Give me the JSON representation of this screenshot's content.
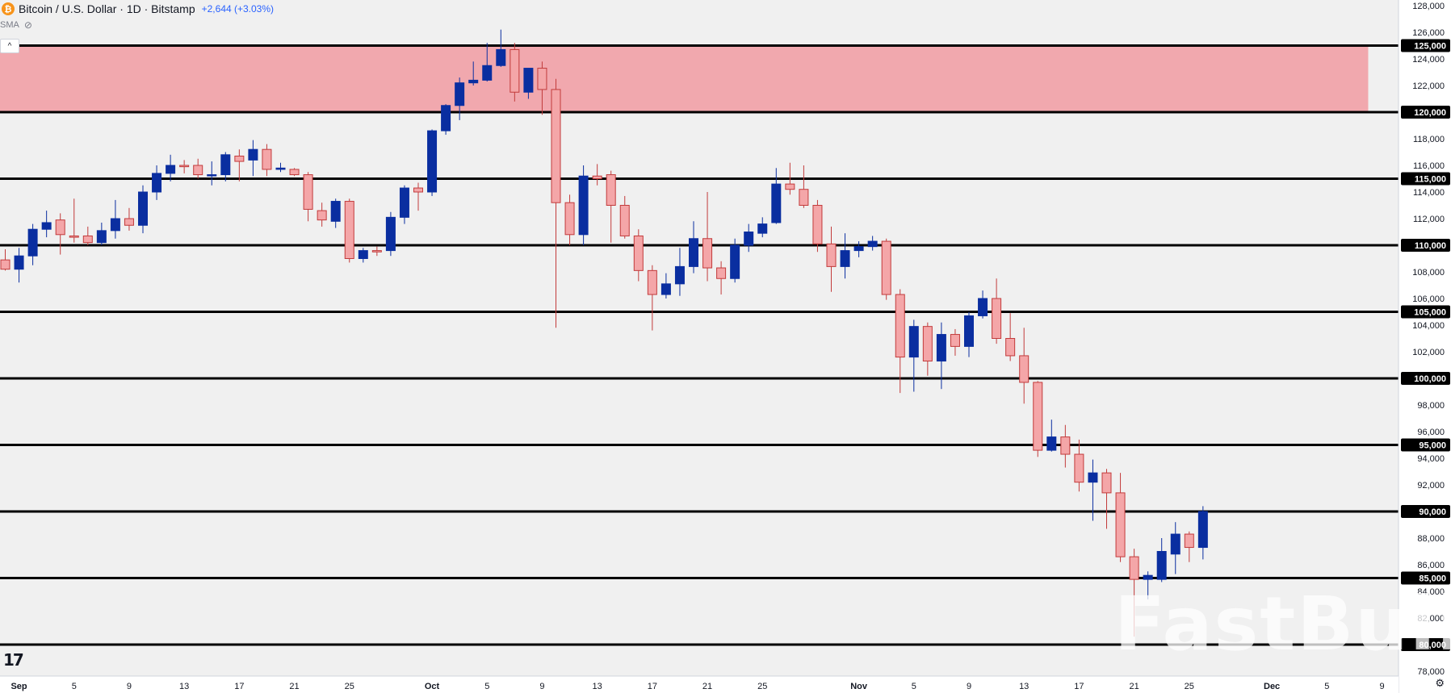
{
  "header": {
    "coin_symbol": "₿",
    "title": "Bitcoin / U.S. Dollar · 1D · Bitstamp",
    "change": "+2,644 (+3.03%)"
  },
  "indicator": {
    "label": "SMA",
    "icon": "eye-crossed-icon"
  },
  "collapse_icon": "^",
  "tv_logo": "17",
  "watermark": "FastBull",
  "settings_icon": "⚙",
  "colors": {
    "background": "#f0f0f0",
    "up_candle": "#0a2ea0",
    "down_candle_fill": "#f4a6a8",
    "down_candle_border": "#c23b3b",
    "resistance_zone": "#f1a8ae",
    "level_line": "#000000",
    "level_label_bg": "#000000",
    "level_label_text": "#ffffff"
  },
  "chart_data": {
    "type": "candlestick",
    "title": "Bitcoin / U.S. Dollar · 1D · Bitstamp",
    "ylim": [
      78000,
      128000
    ],
    "y_ticks": [
      78000,
      80000,
      82000,
      84000,
      86000,
      88000,
      90000,
      92000,
      94000,
      96000,
      98000,
      100000,
      102000,
      104000,
      106000,
      108000,
      110000,
      112000,
      114000,
      116000,
      118000,
      120000,
      122000,
      124000,
      126000,
      128000
    ],
    "y_tick_labels": [
      "78,000",
      "80,000",
      "82,000",
      "84,000",
      "86,000",
      "88,000",
      "90,000",
      "92,000",
      "94,000",
      "96,000",
      "98,000",
      "100,000",
      "102,000",
      "104,000",
      "106,000",
      "108,000",
      "110,000",
      "112,000",
      "114,000",
      "116,000",
      "118,000",
      "120,000",
      "122,000",
      "124,000",
      "126,000",
      "128,000"
    ],
    "x_ticks": [
      {
        "i": 1,
        "label": "Sep",
        "bold": true
      },
      {
        "i": 5,
        "label": "5"
      },
      {
        "i": 9,
        "label": "9"
      },
      {
        "i": 13,
        "label": "13"
      },
      {
        "i": 17,
        "label": "17"
      },
      {
        "i": 21,
        "label": "21"
      },
      {
        "i": 25,
        "label": "25"
      },
      {
        "i": 31,
        "label": "Oct",
        "bold": true
      },
      {
        "i": 35,
        "label": "5"
      },
      {
        "i": 39,
        "label": "9"
      },
      {
        "i": 43,
        "label": "13"
      },
      {
        "i": 47,
        "label": "17"
      },
      {
        "i": 51,
        "label": "21"
      },
      {
        "i": 55,
        "label": "25"
      },
      {
        "i": 62,
        "label": "Nov",
        "bold": true
      },
      {
        "i": 66,
        "label": "5"
      },
      {
        "i": 70,
        "label": "9"
      },
      {
        "i": 74,
        "label": "13"
      },
      {
        "i": 78,
        "label": "17"
      },
      {
        "i": 82,
        "label": "21"
      },
      {
        "i": 86,
        "label": "25"
      },
      {
        "i": 92,
        "label": "Dec",
        "bold": true
      },
      {
        "i": 96,
        "label": "5"
      },
      {
        "i": 100,
        "label": "9"
      }
    ],
    "levels": [
      {
        "value": 125000,
        "label": "125,000"
      },
      {
        "value": 120000,
        "label": "120,000"
      },
      {
        "value": 115000,
        "label": "115,000"
      },
      {
        "value": 110000,
        "label": "110,000"
      },
      {
        "value": 105000,
        "label": "105,000"
      },
      {
        "value": 100000,
        "label": "100,000"
      },
      {
        "value": 95000,
        "label": "95,000"
      },
      {
        "value": 90000,
        "label": "90,000"
      },
      {
        "value": 85000,
        "label": "85,000"
      },
      {
        "value": 80000,
        "label": "80,000"
      }
    ],
    "zone": {
      "from": 120000,
      "to": 125000,
      "end_i": 99
    },
    "candles": [
      {
        "i": 0,
        "o": 108900,
        "h": 109700,
        "l": 108100,
        "c": 108200
      },
      {
        "i": 1,
        "o": 108200,
        "h": 109800,
        "l": 107200,
        "c": 109200
      },
      {
        "i": 2,
        "o": 109200,
        "h": 111600,
        "l": 108500,
        "c": 111200
      },
      {
        "i": 3,
        "o": 111200,
        "h": 112600,
        "l": 110600,
        "c": 111700
      },
      {
        "i": 4,
        "o": 111900,
        "h": 112400,
        "l": 109300,
        "c": 110800
      },
      {
        "i": 5,
        "o": 110700,
        "h": 113500,
        "l": 110200,
        "c": 110600
      },
      {
        "i": 6,
        "o": 110700,
        "h": 111400,
        "l": 110000,
        "c": 110200
      },
      {
        "i": 7,
        "o": 110200,
        "h": 111700,
        "l": 110000,
        "c": 111100
      },
      {
        "i": 8,
        "o": 111100,
        "h": 113400,
        "l": 110500,
        "c": 112000
      },
      {
        "i": 9,
        "o": 112000,
        "h": 112800,
        "l": 111100,
        "c": 111500
      },
      {
        "i": 10,
        "o": 111500,
        "h": 114500,
        "l": 110900,
        "c": 114000
      },
      {
        "i": 11,
        "o": 114000,
        "h": 116000,
        "l": 113400,
        "c": 115400
      },
      {
        "i": 12,
        "o": 115400,
        "h": 116800,
        "l": 114800,
        "c": 116000
      },
      {
        "i": 13,
        "o": 116000,
        "h": 116400,
        "l": 115400,
        "c": 115900
      },
      {
        "i": 14,
        "o": 116000,
        "h": 116500,
        "l": 115000,
        "c": 115300
      },
      {
        "i": 15,
        "o": 115300,
        "h": 116300,
        "l": 114500,
        "c": 115300
      },
      {
        "i": 16,
        "o": 115300,
        "h": 117000,
        "l": 114800,
        "c": 116800
      },
      {
        "i": 17,
        "o": 116700,
        "h": 117200,
        "l": 114800,
        "c": 116300
      },
      {
        "i": 18,
        "o": 116400,
        "h": 117900,
        "l": 115200,
        "c": 117200
      },
      {
        "i": 19,
        "o": 117200,
        "h": 117600,
        "l": 115200,
        "c": 115700
      },
      {
        "i": 20,
        "o": 115700,
        "h": 116200,
        "l": 115500,
        "c": 115800
      },
      {
        "i": 21,
        "o": 115700,
        "h": 115800,
        "l": 115200,
        "c": 115300
      },
      {
        "i": 22,
        "o": 115300,
        "h": 115500,
        "l": 111800,
        "c": 112700
      },
      {
        "i": 23,
        "o": 112600,
        "h": 113200,
        "l": 111400,
        "c": 111900
      },
      {
        "i": 24,
        "o": 111800,
        "h": 113500,
        "l": 111300,
        "c": 113300
      },
      {
        "i": 25,
        "o": 113300,
        "h": 113500,
        "l": 108700,
        "c": 109000
      },
      {
        "i": 26,
        "o": 109000,
        "h": 109800,
        "l": 108700,
        "c": 109600
      },
      {
        "i": 27,
        "o": 109600,
        "h": 109900,
        "l": 109200,
        "c": 109500
      },
      {
        "i": 28,
        "o": 109600,
        "h": 112500,
        "l": 109200,
        "c": 112100
      },
      {
        "i": 29,
        "o": 112100,
        "h": 114500,
        "l": 111600,
        "c": 114300
      },
      {
        "i": 30,
        "o": 114300,
        "h": 114700,
        "l": 112600,
        "c": 114000
      },
      {
        "i": 31,
        "o": 114000,
        "h": 118700,
        "l": 113700,
        "c": 118600
      },
      {
        "i": 32,
        "o": 118600,
        "h": 120600,
        "l": 118300,
        "c": 120500
      },
      {
        "i": 33,
        "o": 120500,
        "h": 122600,
        "l": 119400,
        "c": 122200
      },
      {
        "i": 34,
        "o": 122200,
        "h": 123800,
        "l": 122000,
        "c": 122400
      },
      {
        "i": 35,
        "o": 122400,
        "h": 125200,
        "l": 122300,
        "c": 123500
      },
      {
        "i": 36,
        "o": 123500,
        "h": 126200,
        "l": 123400,
        "c": 124700
      },
      {
        "i": 37,
        "o": 124700,
        "h": 125200,
        "l": 120800,
        "c": 121500
      },
      {
        "i": 38,
        "o": 121500,
        "h": 123300,
        "l": 121000,
        "c": 123300
      },
      {
        "i": 39,
        "o": 123300,
        "h": 123800,
        "l": 119800,
        "c": 121700
      },
      {
        "i": 40,
        "o": 121700,
        "h": 122500,
        "l": 103800,
        "c": 113200
      },
      {
        "i": 41,
        "o": 113200,
        "h": 113800,
        "l": 110000,
        "c": 110800
      },
      {
        "i": 42,
        "o": 110800,
        "h": 116000,
        "l": 110000,
        "c": 115200
      },
      {
        "i": 43,
        "o": 115200,
        "h": 116100,
        "l": 114500,
        "c": 115000
      },
      {
        "i": 44,
        "o": 115300,
        "h": 115600,
        "l": 110200,
        "c": 113000
      },
      {
        "i": 45,
        "o": 113000,
        "h": 113700,
        "l": 110500,
        "c": 110700
      },
      {
        "i": 46,
        "o": 110700,
        "h": 111200,
        "l": 107300,
        "c": 108100
      },
      {
        "i": 47,
        "o": 108100,
        "h": 108500,
        "l": 103600,
        "c": 106300
      },
      {
        "i": 48,
        "o": 106300,
        "h": 107900,
        "l": 106000,
        "c": 107100
      },
      {
        "i": 49,
        "o": 107100,
        "h": 109800,
        "l": 106200,
        "c": 108400
      },
      {
        "i": 50,
        "o": 108400,
        "h": 111800,
        "l": 107900,
        "c": 110500
      },
      {
        "i": 51,
        "o": 110500,
        "h": 114000,
        "l": 107300,
        "c": 108300
      },
      {
        "i": 52,
        "o": 108300,
        "h": 108800,
        "l": 106300,
        "c": 107500
      },
      {
        "i": 53,
        "o": 107500,
        "h": 110500,
        "l": 107200,
        "c": 110000
      },
      {
        "i": 54,
        "o": 110000,
        "h": 111600,
        "l": 109500,
        "c": 111000
      },
      {
        "i": 55,
        "o": 110900,
        "h": 112100,
        "l": 110600,
        "c": 111600
      },
      {
        "i": 56,
        "o": 111700,
        "h": 115800,
        "l": 111600,
        "c": 114600
      },
      {
        "i": 57,
        "o": 114600,
        "h": 116200,
        "l": 113800,
        "c": 114200
      },
      {
        "i": 58,
        "o": 114200,
        "h": 116000,
        "l": 112800,
        "c": 113000
      },
      {
        "i": 59,
        "o": 113000,
        "h": 113400,
        "l": 109500,
        "c": 110100
      },
      {
        "i": 60,
        "o": 110100,
        "h": 111400,
        "l": 106500,
        "c": 108400
      },
      {
        "i": 61,
        "o": 108400,
        "h": 110900,
        "l": 107500,
        "c": 109600
      },
      {
        "i": 62,
        "o": 109600,
        "h": 110300,
        "l": 109100,
        "c": 109900
      },
      {
        "i": 63,
        "o": 109900,
        "h": 110700,
        "l": 109600,
        "c": 110300
      },
      {
        "i": 64,
        "o": 110300,
        "h": 110500,
        "l": 105900,
        "c": 106300
      },
      {
        "i": 65,
        "o": 106300,
        "h": 106700,
        "l": 98900,
        "c": 101600
      },
      {
        "i": 66,
        "o": 101600,
        "h": 104400,
        "l": 99000,
        "c": 103900
      },
      {
        "i": 67,
        "o": 103900,
        "h": 104200,
        "l": 100200,
        "c": 101300
      },
      {
        "i": 68,
        "o": 101300,
        "h": 104200,
        "l": 99200,
        "c": 103300
      },
      {
        "i": 69,
        "o": 103300,
        "h": 103700,
        "l": 101700,
        "c": 102400
      },
      {
        "i": 70,
        "o": 102400,
        "h": 105000,
        "l": 101600,
        "c": 104700
      },
      {
        "i": 71,
        "o": 104700,
        "h": 106600,
        "l": 104500,
        "c": 106000
      },
      {
        "i": 72,
        "o": 106000,
        "h": 107500,
        "l": 102600,
        "c": 103000
      },
      {
        "i": 73,
        "o": 103000,
        "h": 104900,
        "l": 101300,
        "c": 101700
      },
      {
        "i": 74,
        "o": 101700,
        "h": 103800,
        "l": 98100,
        "c": 99700
      },
      {
        "i": 75,
        "o": 99700,
        "h": 99800,
        "l": 94100,
        "c": 94600
      },
      {
        "i": 76,
        "o": 94600,
        "h": 96900,
        "l": 94500,
        "c": 95600
      },
      {
        "i": 77,
        "o": 95600,
        "h": 96500,
        "l": 93300,
        "c": 94300
      },
      {
        "i": 78,
        "o": 94300,
        "h": 95400,
        "l": 91500,
        "c": 92200
      },
      {
        "i": 79,
        "o": 92200,
        "h": 93900,
        "l": 89300,
        "c": 92900
      },
      {
        "i": 80,
        "o": 92900,
        "h": 93200,
        "l": 88700,
        "c": 91400
      },
      {
        "i": 81,
        "o": 91400,
        "h": 92900,
        "l": 86200,
        "c": 86600
      },
      {
        "i": 82,
        "o": 86600,
        "h": 87200,
        "l": 80600,
        "c": 84900
      },
      {
        "i": 83,
        "o": 84900,
        "h": 85500,
        "l": 83400,
        "c": 85200
      },
      {
        "i": 84,
        "o": 84900,
        "h": 88000,
        "l": 84700,
        "c": 87000
      },
      {
        "i": 85,
        "o": 86800,
        "h": 89200,
        "l": 85300,
        "c": 88300
      },
      {
        "i": 86,
        "o": 88300,
        "h": 88500,
        "l": 86200,
        "c": 87300
      },
      {
        "i": 87,
        "o": 87300,
        "h": 90400,
        "l": 86400,
        "c": 90000
      }
    ]
  }
}
